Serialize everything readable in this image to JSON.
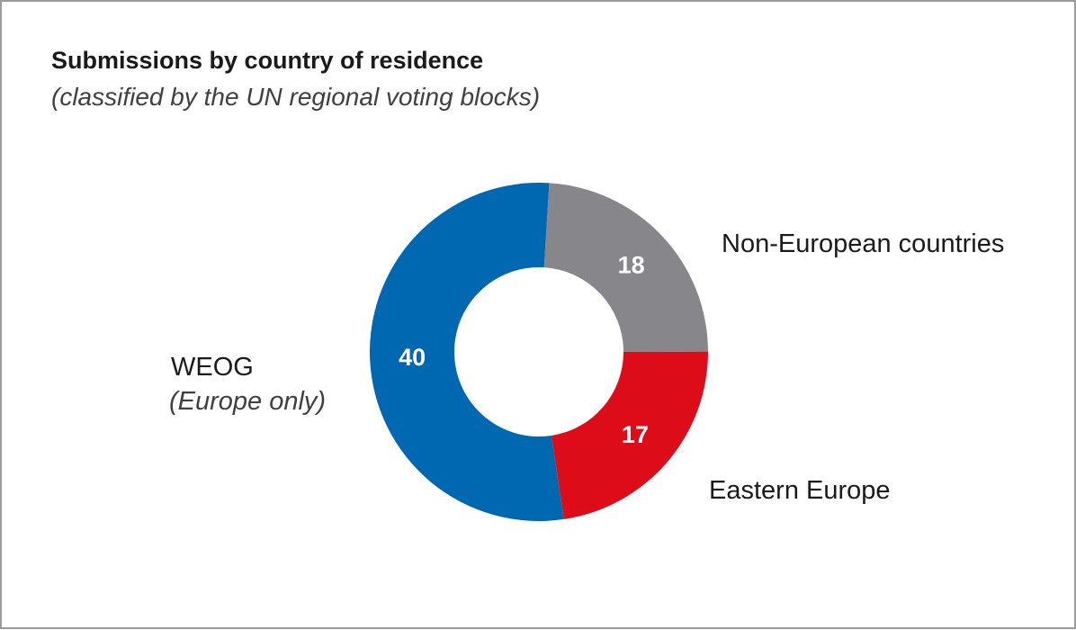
{
  "chart_data": {
    "type": "pie",
    "title": "Submissions by country of residence",
    "subtitle": "(classified by the UN regional voting blocks)",
    "donut": true,
    "slices": [
      {
        "label": "Non-European countries",
        "sublabel": "",
        "value": 18,
        "color": "#87878b"
      },
      {
        "label": "Eastern Europe",
        "sublabel": "",
        "value": 17,
        "color": "#dc0c18"
      },
      {
        "label": "WEOG",
        "sublabel": "(Europe only)",
        "value": 40,
        "color": "#0067b1"
      }
    ]
  }
}
